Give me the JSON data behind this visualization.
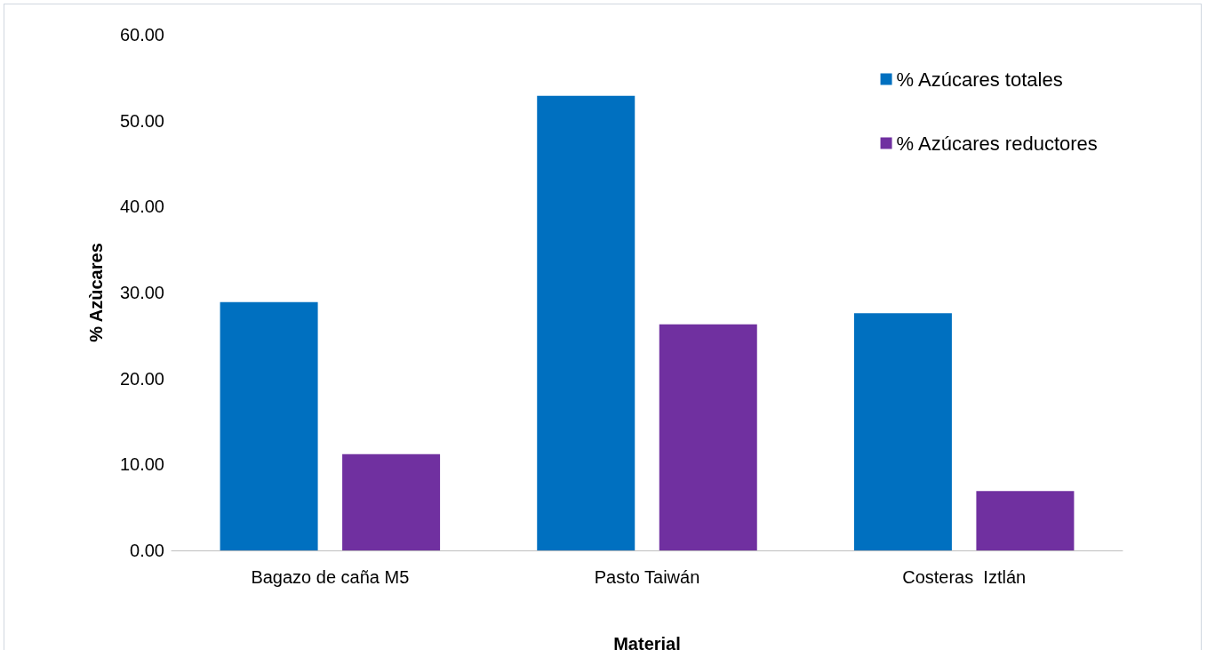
{
  "chart_data": {
    "type": "bar",
    "xlabel": "Material",
    "ylabel": "% Azùcares",
    "categories": [
      "Bagazo de caña M5",
      "Pasto Taiwán",
      "Costeras  Iztlán"
    ],
    "series": [
      {
        "name": "% Azúcares totales",
        "color": "#0070c0",
        "values": [
          28.9,
          52.9,
          27.6
        ]
      },
      {
        "name": "% Azúcares reductores",
        "color": "#7030a0",
        "values": [
          11.2,
          26.3,
          6.9
        ]
      }
    ],
    "ylim": [
      0,
      60
    ],
    "yticks": [
      {
        "value": 0,
        "label": "0.00"
      },
      {
        "value": 10,
        "label": "10.00"
      },
      {
        "value": 20,
        "label": "20.00"
      },
      {
        "value": 30,
        "label": "30.00"
      },
      {
        "value": 40,
        "label": "40.00"
      },
      {
        "value": 50,
        "label": "50.00"
      },
      {
        "value": 60,
        "label": "60.00"
      }
    ],
    "grid": false,
    "legend": "top right"
  }
}
